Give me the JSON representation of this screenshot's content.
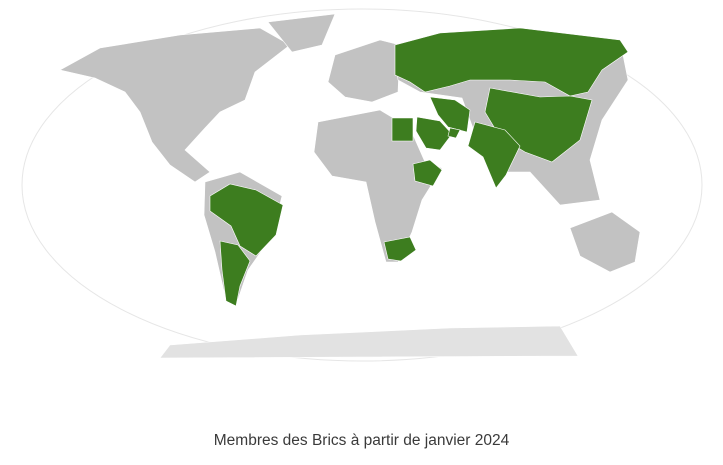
{
  "map": {
    "caption": "Membres des Brics à partir de janvier 2024",
    "colors": {
      "member": "#3d7d1f",
      "non_member": "#c2c2c2",
      "ocean": "#ffffff"
    },
    "highlighted_countries": [
      "Russia",
      "China",
      "India",
      "Iran",
      "Saudi Arabia",
      "United Arab Emirates",
      "Egypt",
      "Ethiopia",
      "South Africa",
      "Brazil",
      "Argentina"
    ]
  }
}
